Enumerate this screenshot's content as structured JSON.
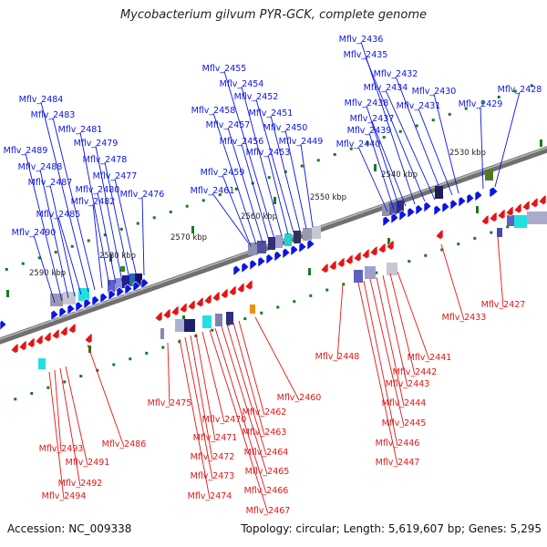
{
  "title": "Mycobacterium gilvum PYR-GCK, complete genome",
  "accession": "Accession: NC_009338",
  "summary": "Topology: circular; Length: 5,619,607 bp; Genes: 5,295",
  "colors": {
    "forward": "#0a14e6",
    "reverse": "#e61414",
    "backbone": "#707070",
    "tick": "#1a7a1a"
  },
  "scale_labels": [
    "2530 kbp",
    "2540 kbp",
    "2550 kbp",
    "2560 kbp",
    "2570 kbp",
    "2580 kbp",
    "2590 kbp"
  ],
  "forward_genes": [
    "Mflv_2428",
    "Mflv_2429",
    "Mflv_2430",
    "Mflv_2431",
    "Mflv_2432",
    "Mflv_2434",
    "Mflv_2435",
    "Mflv_2436",
    "Mflv_2437",
    "Mflv_2438",
    "Mflv_2439",
    "Mflv_2440",
    "Mflv_2449",
    "Mflv_2450",
    "Mflv_2451",
    "Mflv_2452",
    "Mflv_2453",
    "Mflv_2454",
    "Mflv_2455",
    "Mflv_2456",
    "Mflv_2457",
    "Mflv_2458",
    "Mflv_2459",
    "Mflv_2461",
    "Mflv_2476",
    "Mflv_2477",
    "Mflv_2478",
    "Mflv_2479",
    "Mflv_2480",
    "Mflv_2481",
    "Mflv_2482",
    "Mflv_2483",
    "Mflv_2484",
    "Mflv_2485",
    "Mflv_2487",
    "Mflv_2488",
    "Mflv_2489",
    "Mflv_2490"
  ],
  "reverse_genes": [
    "Mflv_2427",
    "Mflv_2433",
    "Mflv_2441",
    "Mflv_2442",
    "Mflv_2443",
    "Mflv_2444",
    "Mflv_2445",
    "Mflv_2446",
    "Mflv_2447",
    "Mflv_2448",
    "Mflv_2460",
    "Mflv_2462",
    "Mflv_2463",
    "Mflv_2464",
    "Mflv_2465",
    "Mflv_2466",
    "Mflv_2467",
    "Mflv_2470",
    "Mflv_2471",
    "Mflv_2472",
    "Mflv_2473",
    "Mflv_2474",
    "Mflv_2475",
    "Mflv_2486",
    "Mflv_2491",
    "Mflv_2492",
    "Mflv_2493",
    "Mflv_2494"
  ]
}
